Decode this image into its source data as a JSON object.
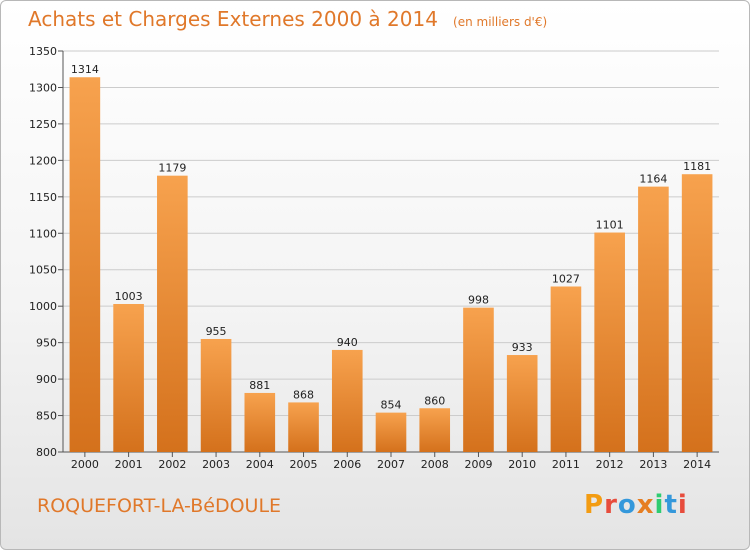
{
  "header": {
    "title": "Achats et Charges Externes 2000 à 2014",
    "subtitle": "(en milliers d'€)"
  },
  "footer": {
    "commune": "ROQUEFORT-LA-BéDOULE",
    "logo": "Proxiti"
  },
  "colors": {
    "bar_top": "#f7a24e",
    "bar_bottom": "#d4711c",
    "title": "#e0782a",
    "grid": "#cccccc",
    "logo_letters": [
      "#f39c12",
      "#e74c3c",
      "#3498db",
      "#e67e22",
      "#2ecc71",
      "#3498db",
      "#e74c3c"
    ]
  },
  "chart_data": {
    "type": "bar",
    "title": "Achats et Charges Externes 2000 à 2014",
    "subtitle": "(en milliers d'€)",
    "categories": [
      "2000",
      "2001",
      "2002",
      "2003",
      "2004",
      "2005",
      "2006",
      "2007",
      "2008",
      "2009",
      "2010",
      "2011",
      "2012",
      "2013",
      "2014"
    ],
    "values": [
      1314,
      1003,
      1179,
      955,
      881,
      868,
      940,
      854,
      860,
      998,
      933,
      1027,
      1101,
      1164,
      1181
    ],
    "value_labels": [
      "1314",
      "1003",
      "1179",
      "955",
      "881",
      "868",
      "940",
      "854",
      "860",
      "998",
      "933",
      "1027",
      "1101",
      "1164",
      "1181"
    ],
    "ylim": [
      800,
      1350
    ],
    "yticks": [
      800,
      850,
      900,
      950,
      1000,
      1050,
      1100,
      1150,
      1200,
      1250,
      1300,
      1350
    ],
    "grid": true,
    "legend": "none"
  }
}
